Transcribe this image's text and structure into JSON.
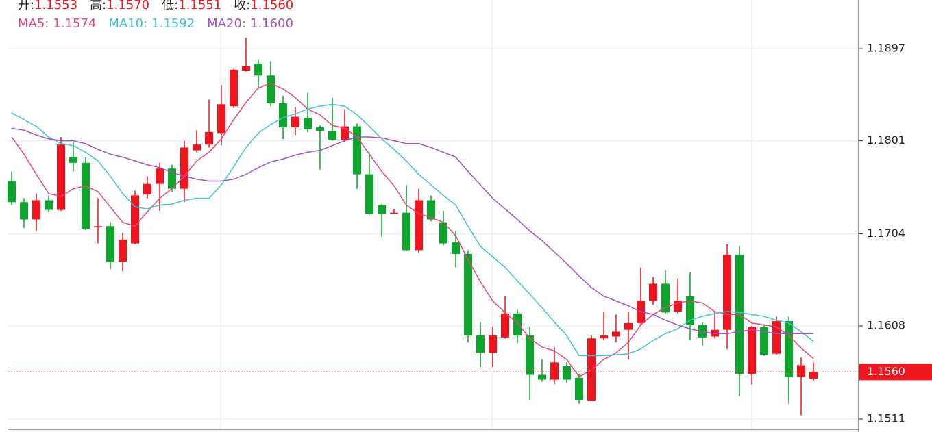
{
  "chart_data": {
    "type": "candlestick",
    "header": [
      {
        "name": "开:",
        "value": "1.1553"
      },
      {
        "name": "高:",
        "value": "1.1570"
      },
      {
        "name": "低:",
        "value": "1.1551"
      },
      {
        "name": "收:",
        "value": "1.1560"
      }
    ],
    "header_value_color": "#f0141e",
    "up_color": "#f0141e",
    "down_color": "#0aa52a",
    "ylim": [
      1.15003,
      1.19477
    ],
    "yticks": [
      1.1897,
      1.1801,
      1.1704,
      1.1608,
      1.1511
    ],
    "grid": true,
    "price_line": {
      "value": 1.156,
      "label": "1.1560",
      "color": "#f0141e"
    },
    "open": [
      1.1759,
      1.1737,
      1.1719,
      1.1739,
      1.1729,
      1.1784,
      1.1778,
      1.1711,
      1.1712,
      1.1675,
      1.1694,
      1.1745,
      1.1756,
      1.1772,
      1.1751,
      1.1791,
      1.1797,
      1.1809,
      1.1837,
      1.1874,
      1.1881,
      1.1869,
      1.184,
      1.1815,
      1.1825,
      1.1815,
      1.1811,
      1.1802,
      1.1816,
      1.1766,
      1.1734,
      1.1725,
      1.1726,
      1.1687,
      1.1739,
      1.1716,
      1.1695,
      1.1683,
      1.1598,
      1.158,
      1.1596,
      1.1621,
      1.1598,
      1.1557,
      1.1552,
      1.1566,
      1.1554,
      1.153,
      1.1595,
      1.1597,
      1.1604,
      1.1611,
      1.1634,
      1.1652,
      1.1623,
      1.1639,
      1.1609,
      1.1597,
      1.1604,
      1.1682,
      1.1558,
      1.1607,
      1.1579,
      1.1613,
      1.1555,
      1.1553
    ],
    "high": [
      1.1769,
      1.1741,
      1.1746,
      1.1744,
      1.1805,
      1.18,
      1.1784,
      1.1741,
      1.1716,
      1.1705,
      1.1749,
      1.1764,
      1.1778,
      1.1776,
      1.1801,
      1.1812,
      1.1844,
      1.1859,
      1.1876,
      1.1908,
      1.1886,
      1.1884,
      1.1848,
      1.1836,
      1.1851,
      1.1817,
      1.1846,
      1.1834,
      1.1819,
      1.1789,
      1.1735,
      1.173,
      1.1755,
      1.1751,
      1.1744,
      1.1728,
      1.1707,
      1.1687,
      1.1612,
      1.1607,
      1.1639,
      1.1625,
      1.1607,
      1.1573,
      1.1586,
      1.157,
      1.1558,
      1.1598,
      1.1623,
      1.162,
      1.1623,
      1.1669,
      1.1659,
      1.1666,
      1.1657,
      1.1664,
      1.1612,
      1.1623,
      1.1693,
      1.1691,
      1.1608,
      1.161,
      1.1618,
      1.1618,
      1.1575,
      1.157
    ],
    "low": [
      1.1734,
      1.171,
      1.1707,
      1.1727,
      1.1728,
      1.1769,
      1.1708,
      1.1694,
      1.1667,
      1.1665,
      1.1693,
      1.1741,
      1.1728,
      1.1748,
      1.1737,
      1.1789,
      1.1794,
      1.1796,
      1.1835,
      1.1873,
      1.1856,
      1.1837,
      1.1803,
      1.1807,
      1.181,
      1.1771,
      1.1801,
      1.18,
      1.1751,
      1.1724,
      1.1701,
      1.1725,
      1.1686,
      1.1684,
      1.1717,
      1.1692,
      1.1669,
      1.1591,
      1.1565,
      1.1565,
      1.1595,
      1.159,
      1.1531,
      1.155,
      1.1547,
      1.1548,
      1.1527,
      1.153,
      1.1593,
      1.1591,
      1.1573,
      1.1609,
      1.163,
      1.1621,
      1.1621,
      1.1593,
      1.1587,
      1.1595,
      1.1584,
      1.1535,
      1.1547,
      1.1577,
      1.1578,
      1.1527,
      1.1515,
      1.1551
    ],
    "close": [
      1.1737,
      1.1719,
      1.1739,
      1.1729,
      1.1797,
      1.1778,
      1.1709,
      1.1712,
      1.1675,
      1.1698,
      1.1744,
      1.1756,
      1.1772,
      1.1751,
      1.1794,
      1.1797,
      1.181,
      1.1839,
      1.1875,
      1.1879,
      1.1869,
      1.184,
      1.1815,
      1.1826,
      1.1813,
      1.1811,
      1.1802,
      1.1816,
      1.1766,
      1.1725,
      1.1725,
      1.1726,
      1.1687,
      1.1739,
      1.1719,
      1.1694,
      1.1683,
      1.1598,
      1.158,
      1.1598,
      1.1621,
      1.1598,
      1.1557,
      1.1552,
      1.157,
      1.1552,
      1.1531,
      1.1595,
      1.1598,
      1.1602,
      1.1611,
      1.1634,
      1.1652,
      1.1622,
      1.1634,
      1.1609,
      1.1596,
      1.1604,
      1.1682,
      1.1558,
      1.1607,
      1.1578,
      1.1613,
      1.1555,
      1.1567,
      1.156
    ],
    "series": [
      {
        "name": "MA5:",
        "last_label": "1.1574",
        "color": "#e8457a",
        "values": [
          1.1805,
          1.1787,
          1.1766,
          1.1746,
          1.1743,
          1.1751,
          1.1754,
          1.1748,
          1.1732,
          1.1716,
          1.1712,
          1.1727,
          1.1741,
          1.1751,
          1.1764,
          1.178,
          1.1789,
          1.1803,
          1.1823,
          1.1841,
          1.1856,
          1.1861,
          1.1855,
          1.1846,
          1.1834,
          1.1828,
          1.1817,
          1.1814,
          1.1805,
          1.1787,
          1.1769,
          1.1754,
          1.1734,
          1.1725,
          1.1721,
          1.1716,
          1.1702,
          1.1677,
          1.1654,
          1.1634,
          1.1622,
          1.1611,
          1.1595,
          1.1586,
          1.1582,
          1.1573,
          1.1555,
          1.1562,
          1.1573,
          1.158,
          1.1591,
          1.1609,
          1.162,
          1.1627,
          1.1632,
          1.1634,
          1.1632,
          1.1623,
          1.162,
          1.162,
          1.1611,
          1.1609,
          1.1607,
          1.1598,
          1.1585,
          1.1574
        ]
      },
      {
        "name": "MA10:",
        "last_label": "1.1592",
        "color": "#3cc4d6",
        "values": [
          1.183,
          1.1823,
          1.1816,
          1.1805,
          1.1798,
          1.1796,
          1.1789,
          1.178,
          1.1764,
          1.1746,
          1.1732,
          1.173,
          1.1734,
          1.1735,
          1.1739,
          1.1741,
          1.1741,
          1.1755,
          1.1774,
          1.1794,
          1.1809,
          1.1818,
          1.1825,
          1.1829,
          1.1834,
          1.1837,
          1.1839,
          1.1837,
          1.1828,
          1.1816,
          1.1803,
          1.1792,
          1.178,
          1.1766,
          1.1755,
          1.1744,
          1.1734,
          1.1712,
          1.1691,
          1.168,
          1.1669,
          1.1655,
          1.1641,
          1.1627,
          1.1612,
          1.1598,
          1.1577,
          1.1577,
          1.1577,
          1.1578,
          1.1579,
          1.1584,
          1.1593,
          1.16,
          1.1605,
          1.1614,
          1.1618,
          1.1621,
          1.1623,
          1.1622,
          1.162,
          1.1618,
          1.1614,
          1.1611,
          1.1602,
          1.1592
        ]
      },
      {
        "name": "MA20:",
        "last_label": "1.1600",
        "color": "#a64fc4",
        "values": [
          1.1814,
          1.1812,
          1.1807,
          1.1803,
          1.1801,
          1.1801,
          1.1798,
          1.1792,
          1.1787,
          1.1784,
          1.178,
          1.1776,
          1.1773,
          1.1768,
          1.1764,
          1.1761,
          1.1759,
          1.1759,
          1.1761,
          1.1766,
          1.1773,
          1.1779,
          1.1782,
          1.1786,
          1.1789,
          1.1791,
          1.1796,
          1.1801,
          1.1805,
          1.1805,
          1.1804,
          1.1801,
          1.1798,
          1.1798,
          1.1794,
          1.1789,
          1.1784,
          1.1769,
          1.1755,
          1.1741,
          1.173,
          1.1719,
          1.1707,
          1.1697,
          1.1685,
          1.1673,
          1.166,
          1.1648,
          1.1639,
          1.1634,
          1.1629,
          1.1623,
          1.162,
          1.1614,
          1.1609,
          1.1605,
          1.1602,
          1.16,
          1.16,
          1.1602,
          1.1604,
          1.1602,
          1.16,
          1.16,
          1.16,
          1.16
        ]
      }
    ]
  }
}
